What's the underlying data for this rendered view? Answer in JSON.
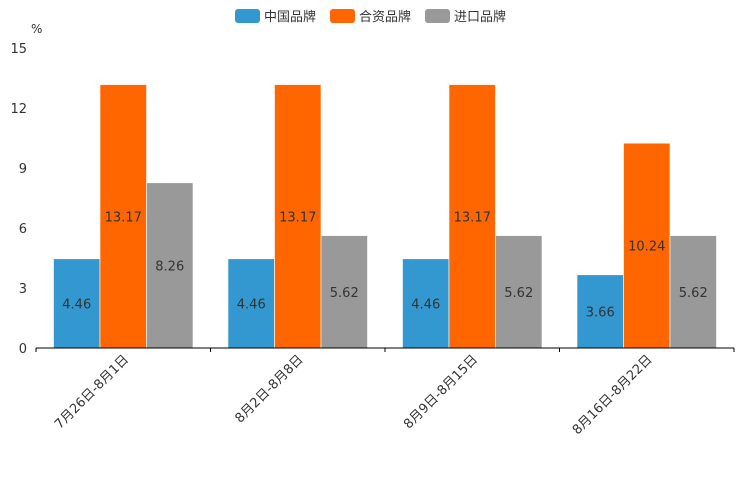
{
  "chart_data": {
    "type": "bar",
    "title": "",
    "unit": "%",
    "xlabel": "",
    "ylabel": "%",
    "ylim": [
      0,
      15
    ],
    "yticks": [
      0,
      3,
      6,
      9,
      12,
      15
    ],
    "grid": false,
    "legend_position": "top-center",
    "categories": [
      "7月26日-8月1日",
      "8月2日-8月8日",
      "8月9日-8月15日",
      "8月16日-8月22日"
    ],
    "series": [
      {
        "name": "中国品牌",
        "color": "#3398d0",
        "values": [
          4.46,
          4.46,
          4.46,
          3.66
        ]
      },
      {
        "name": "合资品牌",
        "color": "#ff6600",
        "values": [
          13.17,
          13.17,
          13.17,
          10.24
        ]
      },
      {
        "name": "进口品牌",
        "color": "#999999",
        "values": [
          8.26,
          5.62,
          5.62,
          5.62
        ]
      }
    ]
  }
}
